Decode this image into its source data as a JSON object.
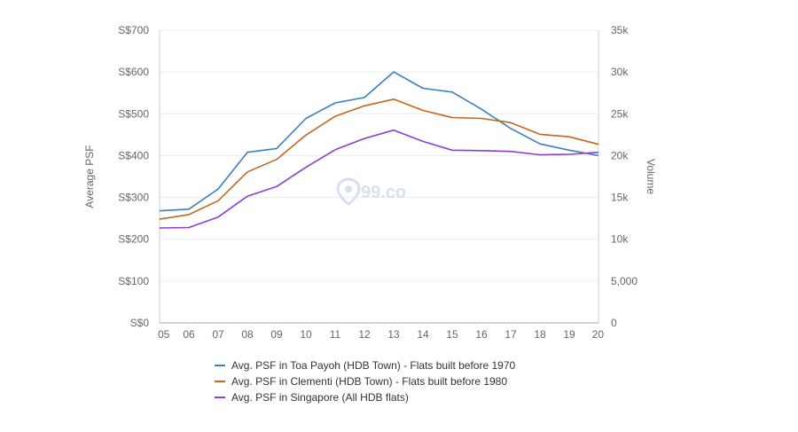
{
  "chart_data": {
    "type": "line",
    "ylabel_left": "Average PSF",
    "ylabel_right": "Volume",
    "watermark": "99.co",
    "categories": [
      "05",
      "06",
      "07",
      "08",
      "09",
      "10",
      "11",
      "12",
      "13",
      "14",
      "15",
      "16",
      "17",
      "18",
      "19",
      "20"
    ],
    "ylim_left": [
      0,
      700
    ],
    "ylim_right": [
      0,
      35000
    ],
    "y_ticks_left": [
      {
        "value": 0,
        "label": "S$0"
      },
      {
        "value": 100,
        "label": "S$100"
      },
      {
        "value": 200,
        "label": "S$200"
      },
      {
        "value": 300,
        "label": "S$300"
      },
      {
        "value": 400,
        "label": "S$400"
      },
      {
        "value": 500,
        "label": "S$500"
      },
      {
        "value": 600,
        "label": "S$600"
      },
      {
        "value": 700,
        "label": "S$700"
      }
    ],
    "y_ticks_right": [
      {
        "value": 0,
        "label": "0"
      },
      {
        "value": 5000,
        "label": "5,000"
      },
      {
        "value": 10000,
        "label": "10k"
      },
      {
        "value": 15000,
        "label": "15k"
      },
      {
        "value": 20000,
        "label": "20k"
      },
      {
        "value": 25000,
        "label": "25k"
      },
      {
        "value": 30000,
        "label": "30k"
      },
      {
        "value": 35000,
        "label": "35k"
      }
    ],
    "grid": true,
    "legend_position": "bottom",
    "series": [
      {
        "name": "Avg. PSF in Toa Payoh (HDB Town) - Flats built before 1970",
        "color": "#3c7fc1",
        "values": [
          268,
          272,
          320,
          408,
          417,
          489,
          526,
          539,
          600,
          561,
          552,
          511,
          465,
          428,
          413,
          400
        ]
      },
      {
        "name": "Avg. PSF in Clementi (HDB Town) - Flats built before 1980",
        "color": "#c4661f",
        "values": [
          248,
          259,
          292,
          361,
          391,
          449,
          494,
          519,
          535,
          508,
          491,
          489,
          479,
          451,
          445,
          427
        ]
      },
      {
        "name": "Avg. PSF in Singapore (All HDB flats)",
        "color": "#8a3fd1",
        "values": [
          227,
          228,
          253,
          303,
          326,
          372,
          414,
          441,
          461,
          434,
          413,
          412,
          410,
          402,
          403,
          408
        ]
      }
    ]
  }
}
